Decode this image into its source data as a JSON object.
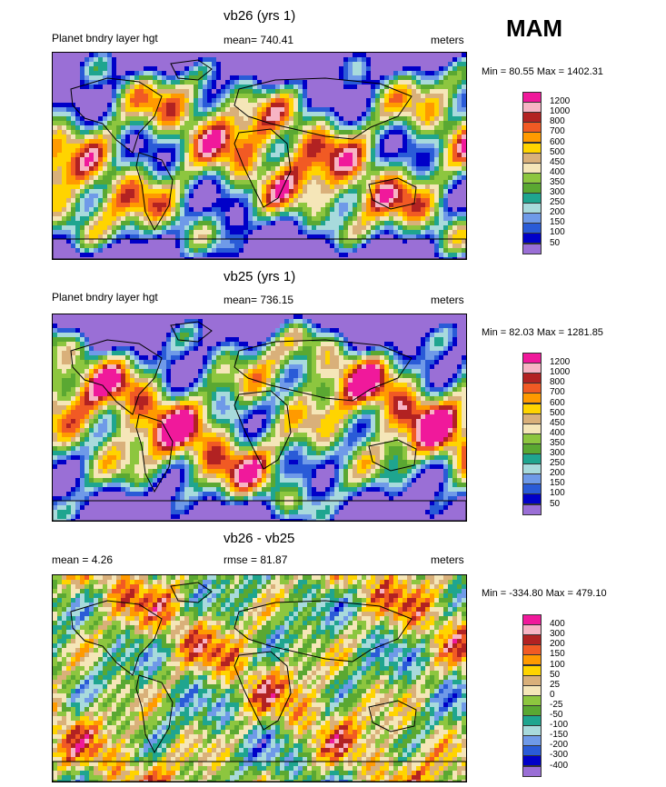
{
  "season": "MAM",
  "panels": [
    {
      "title": "vb26 (yrs 1)",
      "left_label": "Planet bndry layer hgt",
      "mean_label": "mean= 740.41",
      "units": "meters",
      "minmax": "Min =  80.55 Max = 1402.31",
      "levels": [
        "1200",
        "1000",
        "800",
        "700",
        "600",
        "500",
        "450",
        "400",
        "350",
        "300",
        "250",
        "200",
        "150",
        "100",
        "50"
      ],
      "colors": [
        "#f0199b",
        "#f7b4c4",
        "#b22222",
        "#f15a24",
        "#ff9a00",
        "#ffd400",
        "#d9b07a",
        "#f5e6b8",
        "#8dc63f",
        "#5aa832",
        "#1fa58f",
        "#a8dadc",
        "#6f9ae8",
        "#2a5bd7",
        "#0000c8",
        "#9a6fd6"
      ]
    },
    {
      "title": "vb25 (yrs 1)",
      "left_label": "Planet bndry layer hgt",
      "mean_label": "mean= 736.15",
      "units": "meters",
      "minmax": "Min =  82.03 Max = 1281.85",
      "levels": [
        "1200",
        "1000",
        "800",
        "700",
        "600",
        "500",
        "450",
        "400",
        "350",
        "300",
        "250",
        "200",
        "150",
        "100",
        "50"
      ],
      "colors": [
        "#f0199b",
        "#f7b4c4",
        "#b22222",
        "#f15a24",
        "#ff9a00",
        "#ffd400",
        "#d9b07a",
        "#f5e6b8",
        "#8dc63f",
        "#5aa832",
        "#1fa58f",
        "#a8dadc",
        "#6f9ae8",
        "#2a5bd7",
        "#0000c8",
        "#9a6fd6"
      ]
    },
    {
      "title": "vb26 - vb25",
      "left_label": "mean =   4.26",
      "mean_label": "rmse =  81.87",
      "units": "meters",
      "minmax": "Min = -334.80 Max = 479.10",
      "levels": [
        "400",
        "300",
        "200",
        "150",
        "100",
        "50",
        "25",
        "0",
        "-25",
        "-50",
        "-100",
        "-150",
        "-200",
        "-300",
        "-400"
      ],
      "colors": [
        "#f0199b",
        "#f7b4c4",
        "#b22222",
        "#f15a24",
        "#ff9a00",
        "#ffd400",
        "#d9b07a",
        "#f5e6b8",
        "#8dc63f",
        "#5aa832",
        "#1fa58f",
        "#a8dadc",
        "#6f9ae8",
        "#2a5bd7",
        "#0000c8",
        "#9a6fd6"
      ]
    }
  ],
  "chart_data": [
    {
      "type": "heatmap",
      "title": "vb26 (yrs 1)",
      "variable": "Planet bndry layer hgt",
      "units": "meters",
      "mean": 740.41,
      "min": 80.55,
      "max": 1402.31,
      "season": "MAM"
    },
    {
      "type": "heatmap",
      "title": "vb25 (yrs 1)",
      "variable": "Planet bndry layer hgt",
      "units": "meters",
      "mean": 736.15,
      "min": 82.03,
      "max": 1281.85,
      "season": "MAM"
    },
    {
      "type": "heatmap",
      "title": "vb26 - vb25",
      "units": "meters",
      "mean": 4.26,
      "rmse": 81.87,
      "min": -334.8,
      "max": 479.1,
      "season": "MAM"
    }
  ]
}
